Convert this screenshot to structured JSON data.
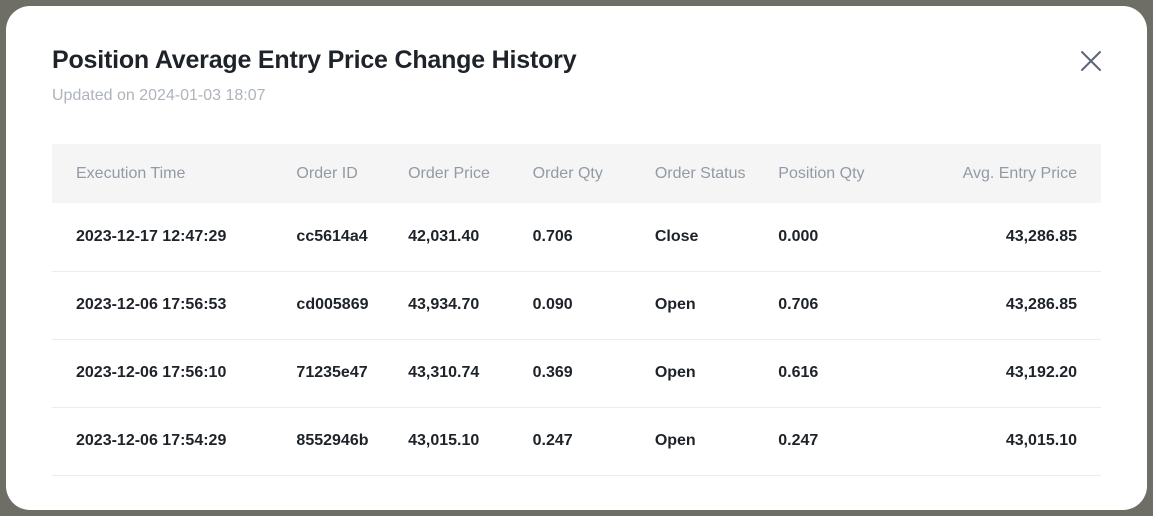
{
  "modal": {
    "title": "Position Average Entry Price Change History",
    "subtitle": "Updated on 2024-01-03 18:07",
    "close_icon": "close-icon"
  },
  "table": {
    "columns": [
      "Execution Time",
      "Order ID",
      "Order Price",
      "Order Qty",
      "Order Status",
      "Position Qty",
      "Avg. Entry Price"
    ],
    "rows": [
      [
        "2023-12-17 12:47:29",
        "cc5614a4",
        "42,031.40",
        "0.706",
        "Close",
        "0.000",
        "43,286.85"
      ],
      [
        "2023-12-06 17:56:53",
        "cd005869",
        "43,934.70",
        "0.090",
        "Open",
        "0.706",
        "43,286.85"
      ],
      [
        "2023-12-06 17:56:10",
        "71235e47",
        "43,310.74",
        "0.369",
        "Open",
        "0.616",
        "43,192.20"
      ],
      [
        "2023-12-06 17:54:29",
        "8552946b",
        "43,015.10",
        "0.247",
        "Open",
        "0.247",
        "43,015.10"
      ]
    ]
  }
}
